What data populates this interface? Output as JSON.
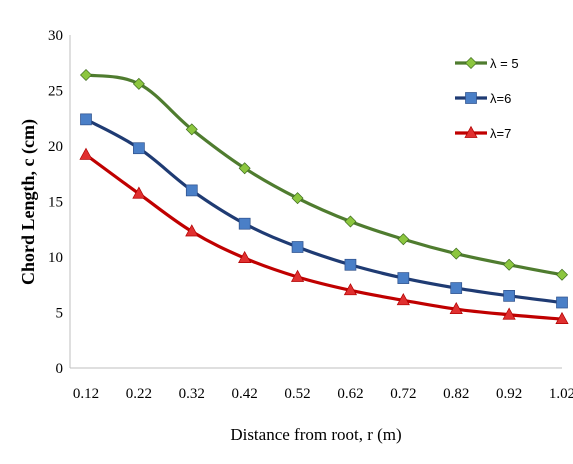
{
  "chart_data": {
    "type": "line",
    "xlabel": "Distance from root, r (m)",
    "ylabel": "Chord Length, c (cm)",
    "x": [
      0.12,
      0.22,
      0.32,
      0.42,
      0.52,
      0.62,
      0.72,
      0.82,
      0.92,
      1.02
    ],
    "x_tick_labels": [
      "0.12",
      "0.22",
      "0.32",
      "0.42",
      "0.52",
      "0.62",
      "0.72",
      "0.82",
      "0.92",
      "1.02"
    ],
    "ylim": [
      0,
      30
    ],
    "yticks": [
      0,
      5,
      10,
      15,
      20,
      25,
      30
    ],
    "grid": false,
    "legend_position": "top-right",
    "series": [
      {
        "name": "λ = 5",
        "color": "#4f7c2f",
        "marker": "diamond",
        "marker_color": "#8cc63f",
        "values": [
          26.4,
          25.6,
          21.5,
          18.0,
          15.3,
          13.2,
          11.6,
          10.3,
          9.3,
          8.4
        ]
      },
      {
        "name": "λ=6",
        "color": "#1f3b73",
        "marker": "square",
        "marker_color": "#4a7fc7",
        "values": [
          22.4,
          19.8,
          16.0,
          13.0,
          10.9,
          9.3,
          8.1,
          7.2,
          6.5,
          5.9
        ]
      },
      {
        "name": "λ=7",
        "color": "#c00000",
        "marker": "triangle",
        "marker_color": "#e03030",
        "values": [
          19.2,
          15.7,
          12.3,
          9.9,
          8.2,
          7.0,
          6.1,
          5.3,
          4.8,
          4.4
        ]
      }
    ]
  }
}
